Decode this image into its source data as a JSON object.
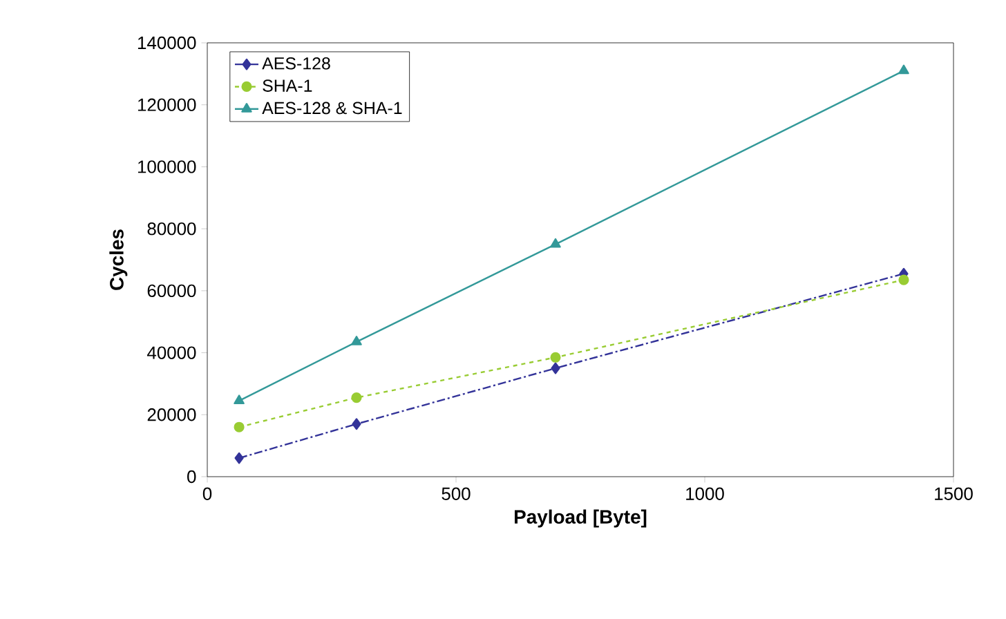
{
  "chart_data": {
    "type": "line",
    "xlabel": "Payload [Byte]",
    "ylabel": "Cycles",
    "x": [
      64,
      300,
      700,
      1400
    ],
    "xlim": [
      0,
      1500
    ],
    "xticks": [
      0,
      500,
      1000,
      1500
    ],
    "ylim": [
      0,
      140000
    ],
    "yticks": [
      0,
      20000,
      40000,
      60000,
      80000,
      100000,
      120000,
      140000
    ],
    "grid": false,
    "legend": "top left",
    "series": [
      {
        "name": "AES-128",
        "color": "#333399",
        "marker": "diamond",
        "line_style": "dashdot",
        "values": [
          6000,
          17000,
          35000,
          65500
        ]
      },
      {
        "name": "SHA-1",
        "color": "#99cc33",
        "marker": "circle",
        "line_style": "dashed",
        "values": [
          16000,
          25500,
          38500,
          63500
        ]
      },
      {
        "name": "AES-128 & SHA-1",
        "color": "#339999",
        "marker": "triangle",
        "line_style": "solid",
        "values": [
          24500,
          43500,
          75000,
          131000
        ]
      }
    ]
  }
}
